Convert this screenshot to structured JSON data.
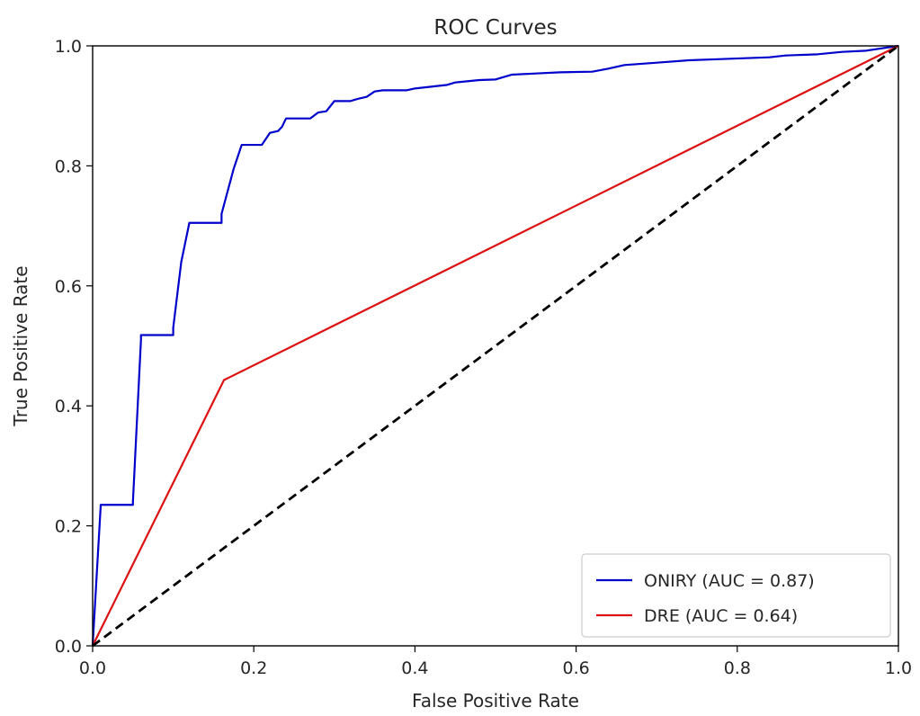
{
  "chart_data": {
    "type": "line",
    "title": "ROC Curves",
    "xlabel": "False Positive Rate",
    "ylabel": "True Positive Rate",
    "xlim": [
      0.0,
      1.0
    ],
    "ylim": [
      0.0,
      1.0
    ],
    "xticks": [
      "0.0",
      "0.2",
      "0.4",
      "0.6",
      "0.8",
      "1.0"
    ],
    "yticks": [
      "0.0",
      "0.2",
      "0.4",
      "0.6",
      "0.8",
      "1.0"
    ],
    "grid": false,
    "legend_position": "bottom-right",
    "series": [
      {
        "name": "ONIRY (AUC = 0.87)",
        "color": "#0000cc",
        "style": "solid",
        "x": [
          0.0,
          0.01,
          0.01,
          0.05,
          0.05,
          0.06,
          0.06,
          0.1,
          0.1,
          0.11,
          0.12,
          0.16,
          0.16,
          0.175,
          0.185,
          0.21,
          0.22,
          0.23,
          0.235,
          0.24,
          0.27,
          0.28,
          0.29,
          0.3,
          0.32,
          0.33,
          0.34,
          0.35,
          0.36,
          0.39,
          0.4,
          0.42,
          0.44,
          0.45,
          0.48,
          0.5,
          0.52,
          0.55,
          0.58,
          0.62,
          0.64,
          0.66,
          0.7,
          0.74,
          0.78,
          0.84,
          0.86,
          0.9,
          0.93,
          0.96,
          1.0
        ],
        "y": [
          0.0,
          0.233,
          0.235,
          0.235,
          0.24,
          0.51,
          0.518,
          0.518,
          0.53,
          0.64,
          0.705,
          0.705,
          0.72,
          0.795,
          0.835,
          0.835,
          0.855,
          0.858,
          0.865,
          0.879,
          0.879,
          0.889,
          0.891,
          0.908,
          0.908,
          0.912,
          0.915,
          0.924,
          0.926,
          0.926,
          0.929,
          0.932,
          0.935,
          0.939,
          0.943,
          0.944,
          0.952,
          0.954,
          0.956,
          0.957,
          0.962,
          0.968,
          0.972,
          0.976,
          0.978,
          0.981,
          0.984,
          0.986,
          0.99,
          0.992,
          1.0
        ]
      },
      {
        "name": "DRE (AUC = 0.64)",
        "color": "#dd1111",
        "style": "solid",
        "x": [
          0.0,
          0.163,
          1.0
        ],
        "y": [
          0.0,
          0.443,
          1.0
        ]
      },
      {
        "name": "",
        "color": "#000000",
        "style": "dashed",
        "x": [
          0.0,
          1.0
        ],
        "y": [
          0.0,
          1.0
        ]
      }
    ]
  }
}
